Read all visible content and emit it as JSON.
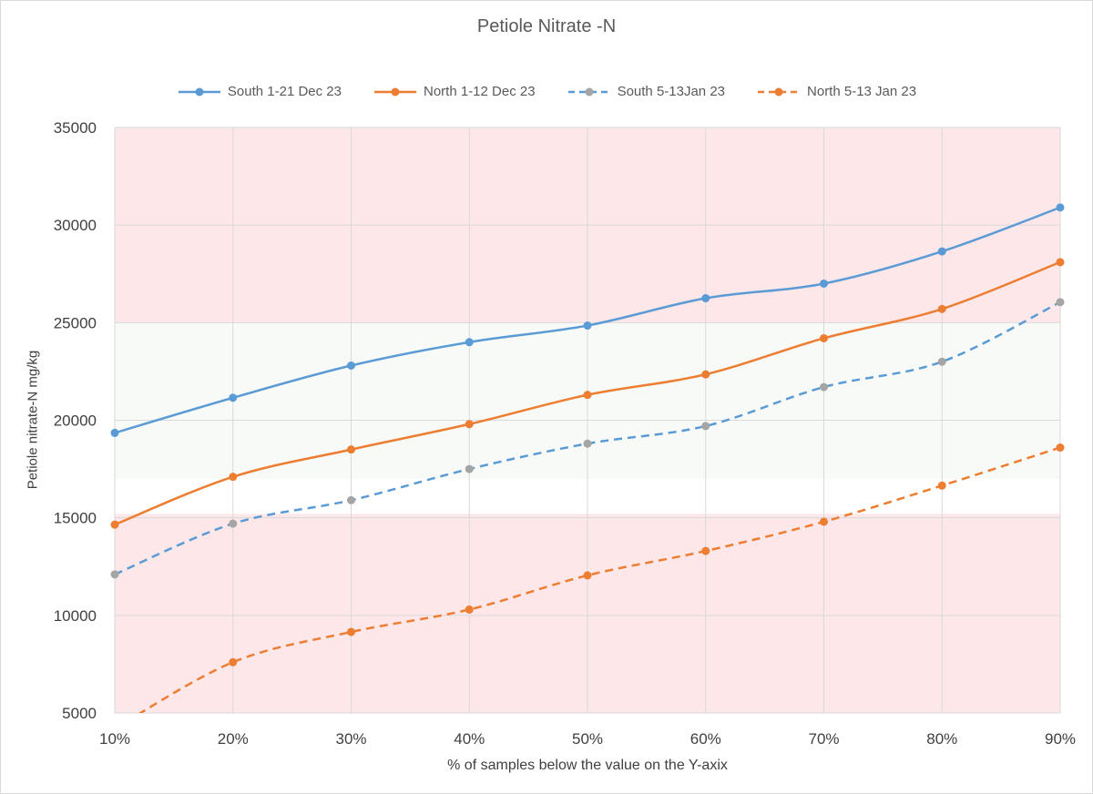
{
  "chart_data": {
    "type": "line",
    "title": "Petiole Nitrate -N",
    "xlabel": "% of samples below the value on the  Y-axix",
    "ylabel": "Petiole nitrate-N mg/kg",
    "ylim": [
      5000,
      35000
    ],
    "yticks": [
      "5000",
      "10000",
      "15000",
      "20000",
      "25000",
      "30000",
      "35000"
    ],
    "categories": [
      "10%",
      "20%",
      "30%",
      "40%",
      "50%",
      "60%",
      "70%",
      "80%",
      "90%"
    ],
    "grid": true,
    "legend_position": "top",
    "bands": [
      {
        "from": 25000,
        "to": 35000,
        "color": "#fde7e9"
      },
      {
        "from": 17000,
        "to": 25000,
        "color": "#f7faf6"
      },
      {
        "from": 5000,
        "to": 15200,
        "color": "#fde7e9"
      }
    ],
    "series": [
      {
        "name": "South 1-21 Dec 23",
        "color": "#5b9bd5",
        "dashed": false,
        "values": [
          19350,
          21150,
          22800,
          24000,
          24850,
          26250,
          27000,
          28650,
          30900
        ]
      },
      {
        "name": "North 1-12 Dec 23",
        "color": "#ed7d31",
        "dashed": false,
        "values": [
          14650,
          17100,
          18500,
          19800,
          21300,
          22350,
          24200,
          25700,
          28100
        ]
      },
      {
        "name": "South 5-13Jan 23",
        "color": "#5b9bd5",
        "dashed": true,
        "values": [
          12100,
          14700,
          15900,
          17500,
          18800,
          19700,
          21700,
          23000,
          26050
        ]
      },
      {
        "name": "North 5-13 Jan 23",
        "color": "#ed7d31",
        "dashed": true,
        "values": [
          4200,
          7600,
          9150,
          10300,
          12050,
          13300,
          14800,
          16650,
          18600
        ]
      }
    ]
  }
}
